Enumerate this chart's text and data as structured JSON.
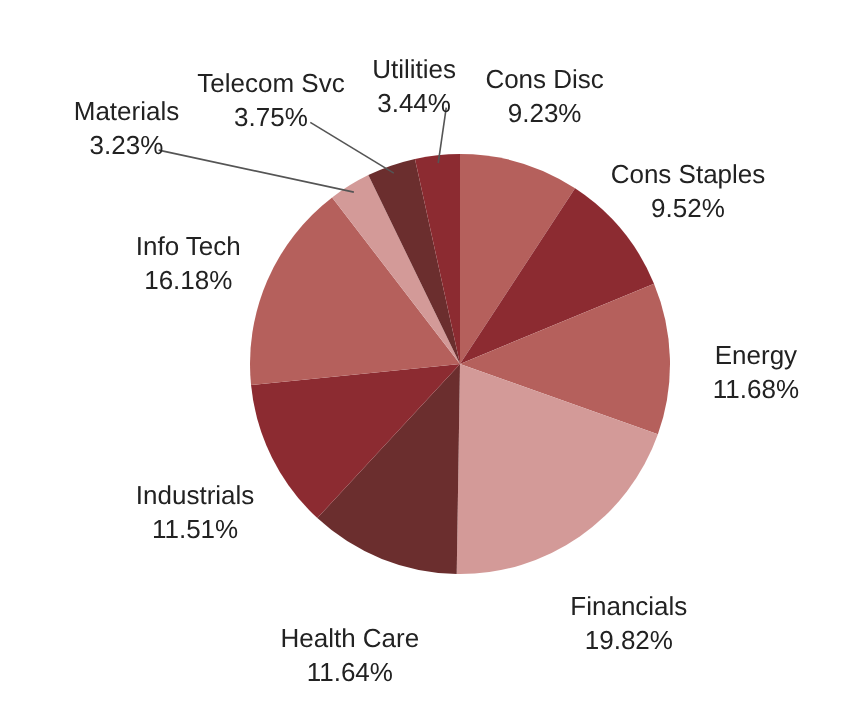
{
  "chart_data": {
    "type": "pie",
    "categories": [
      "Cons Disc",
      "Cons Staples",
      "Energy",
      "Financials",
      "Health Care",
      "Industrials",
      "Info Tech",
      "Materials",
      "Telecom Svc",
      "Utilities"
    ],
    "values": [
      9.23,
      9.52,
      11.68,
      19.82,
      11.64,
      11.51,
      16.18,
      3.23,
      3.75,
      3.44
    ],
    "value_labels": [
      "9.23%",
      "9.52%",
      "11.68%",
      "19.82%",
      "11.64%",
      "11.51%",
      "16.18%",
      "3.23%",
      "3.75%",
      "3.44%"
    ],
    "colors": [
      "#b5605c",
      "#8c2b31",
      "#b5605c",
      "#d39a98",
      "#6b2e2e",
      "#8c2b31",
      "#b5605c",
      "#d39a98",
      "#6b2e2e",
      "#8c2b31"
    ]
  }
}
